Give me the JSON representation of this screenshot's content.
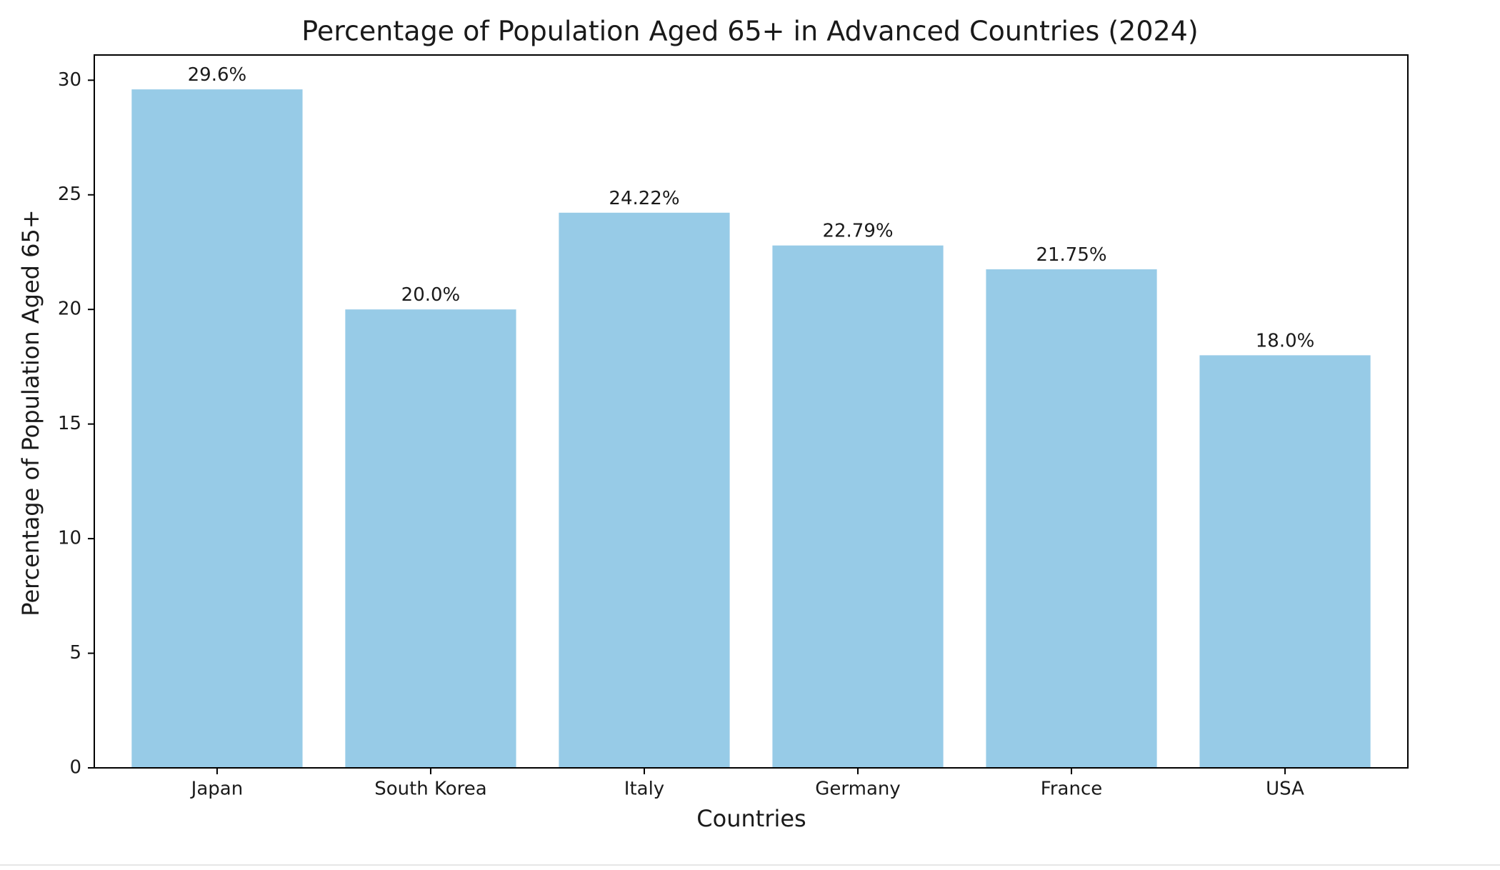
{
  "chart_data": {
    "type": "bar",
    "title": "Percentage of Population Aged 65+ in Advanced Countries (2024)",
    "xlabel": "Countries",
    "ylabel": "Percentage of Population Aged 65+",
    "categories": [
      "Japan",
      "South Korea",
      "Italy",
      "Germany",
      "France",
      "USA"
    ],
    "values": [
      29.6,
      20.0,
      24.22,
      22.79,
      21.75,
      18.0
    ],
    "value_labels": [
      "29.6%",
      "20.0%",
      "24.22%",
      "22.79%",
      "21.75%",
      "18.0%"
    ],
    "ylim": [
      0,
      31.1
    ],
    "yticks": [
      0,
      5,
      10,
      15,
      20,
      25,
      30
    ],
    "bar_color": "#97cbe7",
    "grid": false,
    "legend": "none"
  }
}
